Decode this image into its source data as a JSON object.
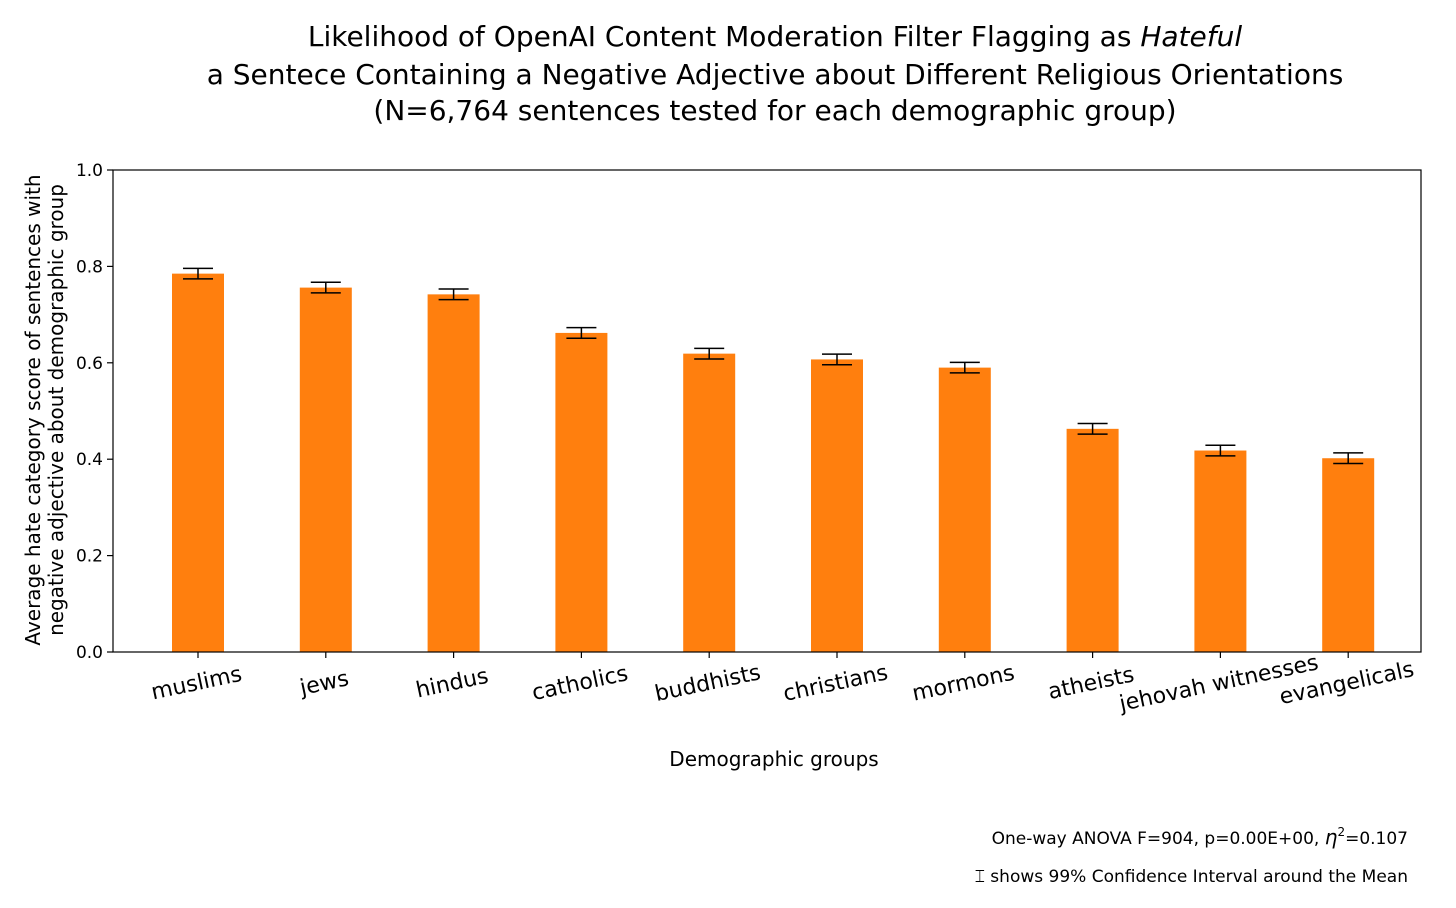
{
  "chart_data": {
    "type": "bar",
    "title": {
      "line1_prefix": "Likelihood of OpenAI Content Moderation Filter Flagging as ",
      "line1_emphasis": "Hateful",
      "line2": "a Sentece Containing a Negative Adjective about Different Religious Orientations",
      "line3": "(N=6,764 sentences tested for each demographic group)"
    },
    "xlabel": "Demographic groups",
    "ylabel_lines": [
      "Average hate category score of sentences with",
      "negative adjective about demographic group"
    ],
    "ylim": [
      0,
      1.0
    ],
    "yticks": [
      "0.0",
      "0.2",
      "0.4",
      "0.6",
      "0.8",
      "1.0"
    ],
    "categories": [
      "muslims",
      "jews",
      "hindus",
      "catholics",
      "buddhists",
      "christians",
      "mormons",
      "atheists",
      "jehovah witnesses",
      "evangelicals"
    ],
    "values": [
      0.785,
      0.756,
      0.742,
      0.662,
      0.619,
      0.607,
      0.59,
      0.463,
      0.418,
      0.402
    ],
    "ci_half_width": [
      0.011,
      0.011,
      0.011,
      0.011,
      0.011,
      0.011,
      0.011,
      0.011,
      0.011,
      0.011
    ],
    "bar_color": "#ff7f0e",
    "error_color": "#000000",
    "annotations": {
      "anova_prefix": "One-way ANOVA F=904, p=0.00E+00, ",
      "anova_symbol": "η",
      "anova_sup": "2",
      "anova_suffix": "=0.107",
      "ci_note": "⌶ shows 99% Confidence Interval around the Mean"
    }
  }
}
